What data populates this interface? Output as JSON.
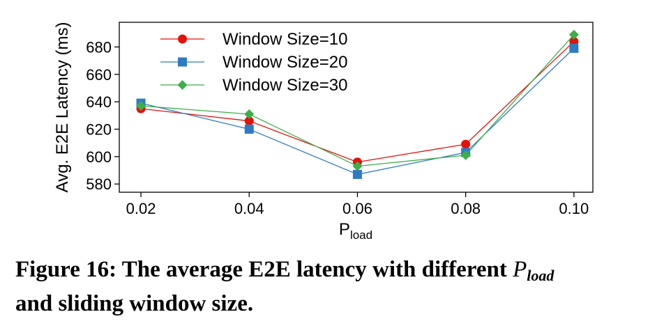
{
  "chart_data": {
    "type": "line",
    "x": [
      0.02,
      0.04,
      0.06,
      0.08,
      0.1
    ],
    "x_tick_labels": [
      "0.02",
      "0.04",
      "0.06",
      "0.08",
      "0.10"
    ],
    "y_ticks": [
      580,
      600,
      620,
      640,
      660,
      680
    ],
    "xlim": [
      0.016,
      0.1035
    ],
    "ylim": [
      574,
      698
    ],
    "ylabel": "Avg. E2E Latency (ms)",
    "xlabel_main": "P",
    "xlabel_sub": "load",
    "legend_position": "top-left",
    "series": [
      {
        "name": "Window Size=10",
        "color": "#e3120b",
        "marker": "circle",
        "values": [
          635,
          626,
          596,
          609,
          684
        ]
      },
      {
        "name": "Window Size=20",
        "color": "#2e7bc4",
        "marker": "square",
        "values": [
          639,
          620,
          587,
          603,
          679
        ]
      },
      {
        "name": "Window Size=30",
        "color": "#3fae49",
        "marker": "diamond",
        "values": [
          637,
          631,
          593,
          601,
          689
        ]
      }
    ]
  },
  "caption": {
    "prefix": "Figure 16: The average E2E latency with different ",
    "var_main": "P",
    "var_sub": "load",
    "suffix": "and sliding window size."
  }
}
